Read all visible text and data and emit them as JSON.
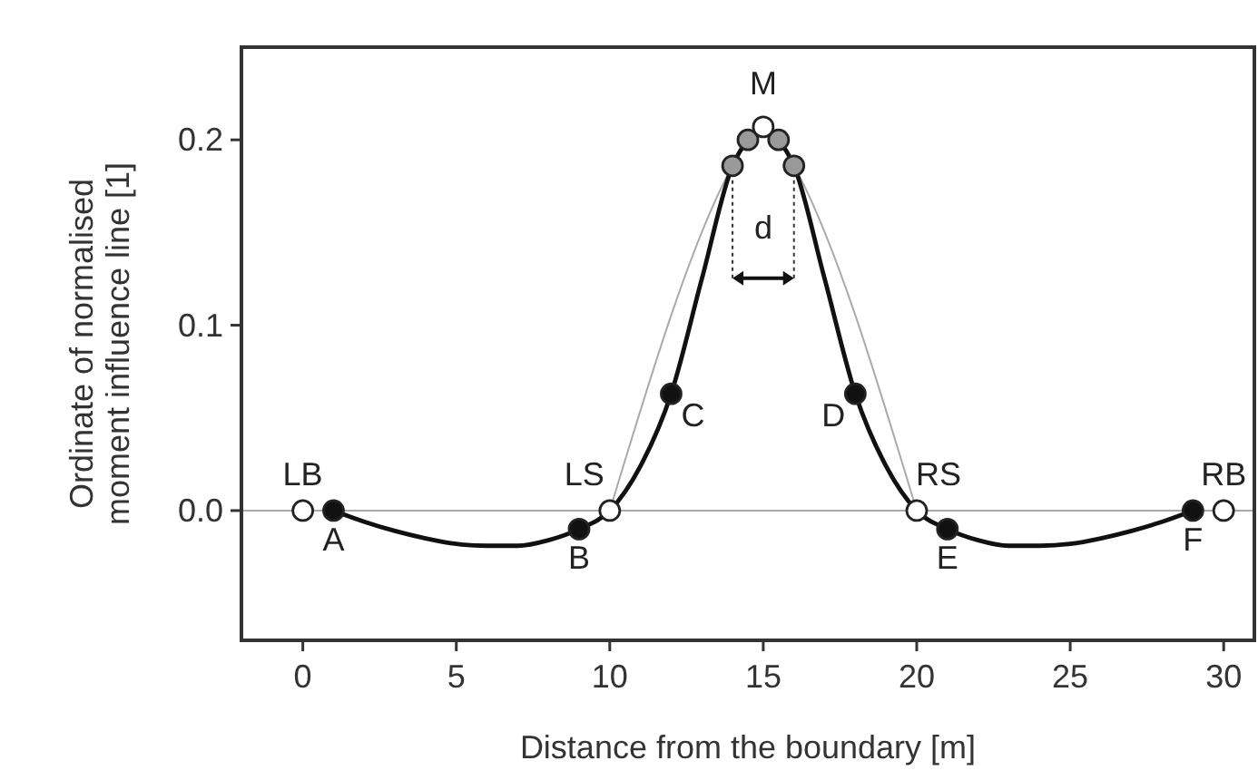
{
  "chart_data": {
    "type": "line",
    "xlabel": "Distance from the boundary [m]",
    "ylabel": "Ordinate of normalised\nmoment influence line [1]",
    "xlim": [
      -2,
      31
    ],
    "ylim": [
      -0.07,
      0.25
    ],
    "xticks": [
      0,
      5,
      10,
      15,
      20,
      25,
      30
    ],
    "yticks": [
      {
        "value": 0,
        "label": "0.0"
      },
      {
        "value": 0.1,
        "label": "0.1"
      },
      {
        "value": 0.2,
        "label": "0.2"
      }
    ],
    "grid": false,
    "ref_lines": [
      {
        "axis": "y",
        "value": 0,
        "color": "#aaaaaa",
        "line_style": "solid"
      }
    ],
    "series": [
      {
        "color": "#aaaaaa",
        "marker": "none",
        "line_style": "solid",
        "x": [
          10,
          14,
          14.5,
          15,
          15.5,
          16,
          20
        ],
        "values": [
          0,
          0.186,
          0.2,
          0.207,
          0.2,
          0.186,
          0
        ]
      },
      {
        "color": "#111111",
        "marker": "none",
        "line_style": "solid",
        "x": [
          1,
          2,
          3,
          4,
          5,
          6,
          7,
          8,
          9,
          10,
          11,
          12,
          13,
          14,
          14.5,
          15,
          15.5,
          16,
          17,
          18,
          19,
          20,
          21,
          22,
          23,
          24,
          25,
          26,
          27,
          28,
          29
        ],
        "values": [
          0,
          -0.006,
          -0.011,
          -0.015,
          -0.018,
          -0.019,
          -0.019,
          -0.016,
          -0.01,
          0,
          0.024,
          0.063,
          0.125,
          0.186,
          0.2,
          0.207,
          0.2,
          0.186,
          0.125,
          0.063,
          0.024,
          0,
          -0.01,
          -0.016,
          -0.019,
          -0.019,
          -0.018,
          -0.015,
          -0.011,
          -0.006,
          0
        ]
      },
      {
        "type": "scatter",
        "color": "#111111",
        "marker": "circle",
        "x": [
          1,
          9,
          12,
          18,
          21,
          29
        ],
        "values": [
          0,
          -0.01,
          0.063,
          0.063,
          -0.01,
          0
        ]
      },
      {
        "type": "scatter",
        "color": "#999999",
        "marker": "circle",
        "x": [
          14,
          14.5,
          15.5,
          16
        ],
        "values": [
          0.186,
          0.2,
          0.2,
          0.186
        ]
      },
      {
        "type": "scatter",
        "color": "#ffffff",
        "marker": "circle",
        "x": [
          0,
          10,
          15,
          20,
          30
        ],
        "values": [
          0,
          0,
          0.207,
          0,
          0
        ]
      }
    ],
    "annotations": [
      {
        "text": "LB",
        "x": 0,
        "y": 0
      },
      {
        "text": "A",
        "x": 1,
        "y": 0
      },
      {
        "text": "B",
        "x": 9,
        "y": -0.01
      },
      {
        "text": "LS",
        "x": 10,
        "y": 0
      },
      {
        "text": "C",
        "x": 12,
        "y": 0.063
      },
      {
        "text": "M",
        "x": 15,
        "y": 0.207
      },
      "d",
      {
        "text": "D",
        "x": 18,
        "y": 0.063
      },
      {
        "text": "RS",
        "x": 20,
        "y": 0
      },
      {
        "text": "E",
        "x": 21,
        "y": -0.01
      },
      {
        "text": "F",
        "x": 29,
        "y": 0
      },
      {
        "text": "RB",
        "x": 30,
        "y": 0
      }
    ]
  }
}
